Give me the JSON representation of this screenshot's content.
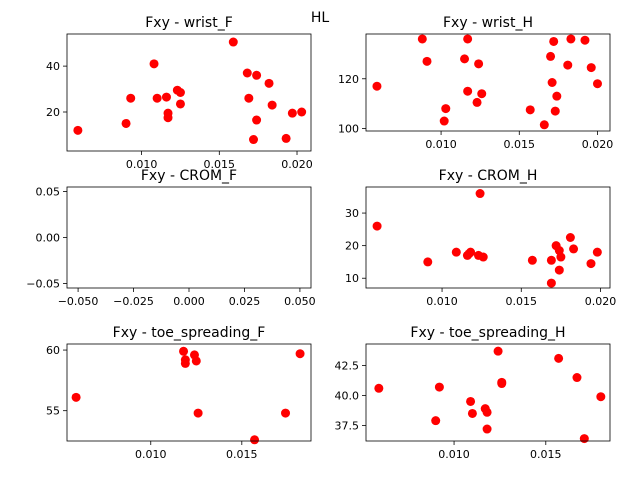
{
  "figure": {
    "suptitle": "HL"
  },
  "chart_data": [
    {
      "type": "scatter",
      "title": "Fxy - wrist_F",
      "xlabel": "",
      "ylabel": "",
      "xlim": [
        0.0052,
        0.0209
      ],
      "ylim": [
        3,
        54
      ],
      "xticks": [
        0.01,
        0.015,
        0.02
      ],
      "xtick_labels": [
        "0.010",
        "0.015",
        "0.020"
      ],
      "yticks": [
        20,
        40
      ],
      "ytick_labels": [
        "20",
        "40"
      ],
      "grid": false,
      "marker_color": "#ff0000",
      "points": [
        [
          0.0059,
          12
        ],
        [
          0.009,
          15
        ],
        [
          0.0093,
          26
        ],
        [
          0.0108,
          41
        ],
        [
          0.011,
          26
        ],
        [
          0.0116,
          26.5
        ],
        [
          0.0117,
          19.5
        ],
        [
          0.0117,
          17.5
        ],
        [
          0.0123,
          29.5
        ],
        [
          0.0125,
          28.5
        ],
        [
          0.0125,
          23.5
        ],
        [
          0.0159,
          50.5
        ],
        [
          0.0168,
          37
        ],
        [
          0.0169,
          26
        ],
        [
          0.0172,
          8
        ],
        [
          0.0174,
          36
        ],
        [
          0.0174,
          16.5
        ],
        [
          0.0182,
          32.5
        ],
        [
          0.0184,
          23
        ],
        [
          0.0193,
          8.5
        ],
        [
          0.0197,
          19.5
        ],
        [
          0.0203,
          20
        ]
      ]
    },
    {
      "type": "scatter",
      "title": "Fxy - wrist_H",
      "xlabel": "",
      "ylabel": "",
      "xlim": [
        0.0052,
        0.0208
      ],
      "ylim": [
        99,
        138
      ],
      "xticks": [
        0.01,
        0.015,
        0.02
      ],
      "xtick_labels": [
        "0.010",
        "0.015",
        "0.020"
      ],
      "yticks": [
        100,
        120
      ],
      "ytick_labels": [
        "100",
        "120"
      ],
      "grid": false,
      "marker_color": "#ff0000",
      "points": [
        [
          0.0059,
          117
        ],
        [
          0.0088,
          136
        ],
        [
          0.0091,
          127
        ],
        [
          0.0102,
          103
        ],
        [
          0.0103,
          108
        ],
        [
          0.0115,
          128
        ],
        [
          0.0117,
          136
        ],
        [
          0.0117,
          115
        ],
        [
          0.0123,
          110.5
        ],
        [
          0.0124,
          126
        ],
        [
          0.0126,
          114
        ],
        [
          0.0157,
          107.5
        ],
        [
          0.0166,
          101.5
        ],
        [
          0.017,
          129
        ],
        [
          0.0171,
          118.5
        ],
        [
          0.0172,
          135
        ],
        [
          0.0173,
          107
        ],
        [
          0.0174,
          113
        ],
        [
          0.0181,
          125.5
        ],
        [
          0.0183,
          136
        ],
        [
          0.0192,
          135.5
        ],
        [
          0.0196,
          124.5
        ],
        [
          0.02,
          118
        ]
      ]
    },
    {
      "type": "scatter",
      "title": "Fxy - CROM_F",
      "xlabel": "",
      "ylabel": "",
      "xlim": [
        -0.055,
        0.055
      ],
      "ylim": [
        -0.055,
        0.055
      ],
      "xticks": [
        -0.05,
        -0.025,
        0.0,
        0.025,
        0.05
      ],
      "xtick_labels": [
        "−0.050",
        "−0.025",
        "0.000",
        "0.025",
        "0.050"
      ],
      "yticks": [
        -0.05,
        0.0,
        0.05
      ],
      "ytick_labels": [
        "−0.05",
        "0.00",
        "0.05"
      ],
      "grid": false,
      "marker_color": "#ff0000",
      "points": []
    },
    {
      "type": "scatter",
      "title": "Fxy - CROM_H",
      "xlabel": "",
      "ylabel": "",
      "xlim": [
        0.0052,
        0.0206
      ],
      "ylim": [
        7,
        38
      ],
      "xticks": [
        0.01,
        0.015,
        0.02
      ],
      "xtick_labels": [
        "0.010",
        "0.015",
        "0.020"
      ],
      "yticks": [
        10,
        20,
        30
      ],
      "ytick_labels": [
        "10",
        "20",
        "30"
      ],
      "grid": false,
      "marker_color": "#ff0000",
      "points": [
        [
          0.0059,
          26
        ],
        [
          0.0091,
          15
        ],
        [
          0.0109,
          18
        ],
        [
          0.0116,
          17
        ],
        [
          0.0117,
          17.5
        ],
        [
          0.0118,
          18
        ],
        [
          0.0123,
          17
        ],
        [
          0.0124,
          36
        ],
        [
          0.0126,
          16.5
        ],
        [
          0.0157,
          15.5
        ],
        [
          0.0169,
          8.5
        ],
        [
          0.0169,
          15.5
        ],
        [
          0.0172,
          20
        ],
        [
          0.0174,
          12.5
        ],
        [
          0.0174,
          18.5
        ],
        [
          0.0175,
          16.5
        ],
        [
          0.0181,
          22.5
        ],
        [
          0.0183,
          19
        ],
        [
          0.0194,
          14.5
        ],
        [
          0.0198,
          18
        ]
      ]
    },
    {
      "type": "scatter",
      "title": "Fxy - toe_spreading_F",
      "xlabel": "",
      "ylabel": "",
      "xlim": [
        0.0054,
        0.0188
      ],
      "ylim": [
        52.5,
        60.5
      ],
      "xticks": [
        0.01,
        0.015
      ],
      "xtick_labels": [
        "0.010",
        "0.015"
      ],
      "yticks": [
        55,
        60
      ],
      "ytick_labels": [
        "55",
        "60"
      ],
      "grid": false,
      "marker_color": "#ff0000",
      "points": [
        [
          0.0059,
          56.1
        ],
        [
          0.0118,
          59.9
        ],
        [
          0.0119,
          59.2
        ],
        [
          0.0119,
          58.9
        ],
        [
          0.0124,
          59.6
        ],
        [
          0.0125,
          59.1
        ],
        [
          0.0126,
          54.8
        ],
        [
          0.0157,
          52.6
        ],
        [
          0.0174,
          54.8
        ],
        [
          0.0182,
          59.7
        ]
      ]
    },
    {
      "type": "scatter",
      "title": "Fxy - toe_spreading_H",
      "xlabel": "",
      "ylabel": "",
      "xlim": [
        0.0052,
        0.0185
      ],
      "ylim": [
        36.2,
        44.3
      ],
      "xticks": [
        0.01,
        0.015
      ],
      "xtick_labels": [
        "0.010",
        "0.015"
      ],
      "yticks": [
        37.5,
        40.0,
        42.5
      ],
      "ytick_labels": [
        "37.5",
        "40.0",
        "42.5"
      ],
      "grid": false,
      "marker_color": "#ff0000",
      "points": [
        [
          0.0059,
          40.6
        ],
        [
          0.009,
          37.9
        ],
        [
          0.0092,
          40.7
        ],
        [
          0.0109,
          39.5
        ],
        [
          0.011,
          38.5
        ],
        [
          0.0117,
          38.9
        ],
        [
          0.0118,
          37.2
        ],
        [
          0.0118,
          38.6
        ],
        [
          0.0124,
          43.7
        ],
        [
          0.0126,
          41.1
        ],
        [
          0.0126,
          41
        ],
        [
          0.0157,
          43.1
        ],
        [
          0.0167,
          41.5
        ],
        [
          0.0171,
          36.4
        ],
        [
          0.018,
          39.9
        ]
      ]
    }
  ]
}
